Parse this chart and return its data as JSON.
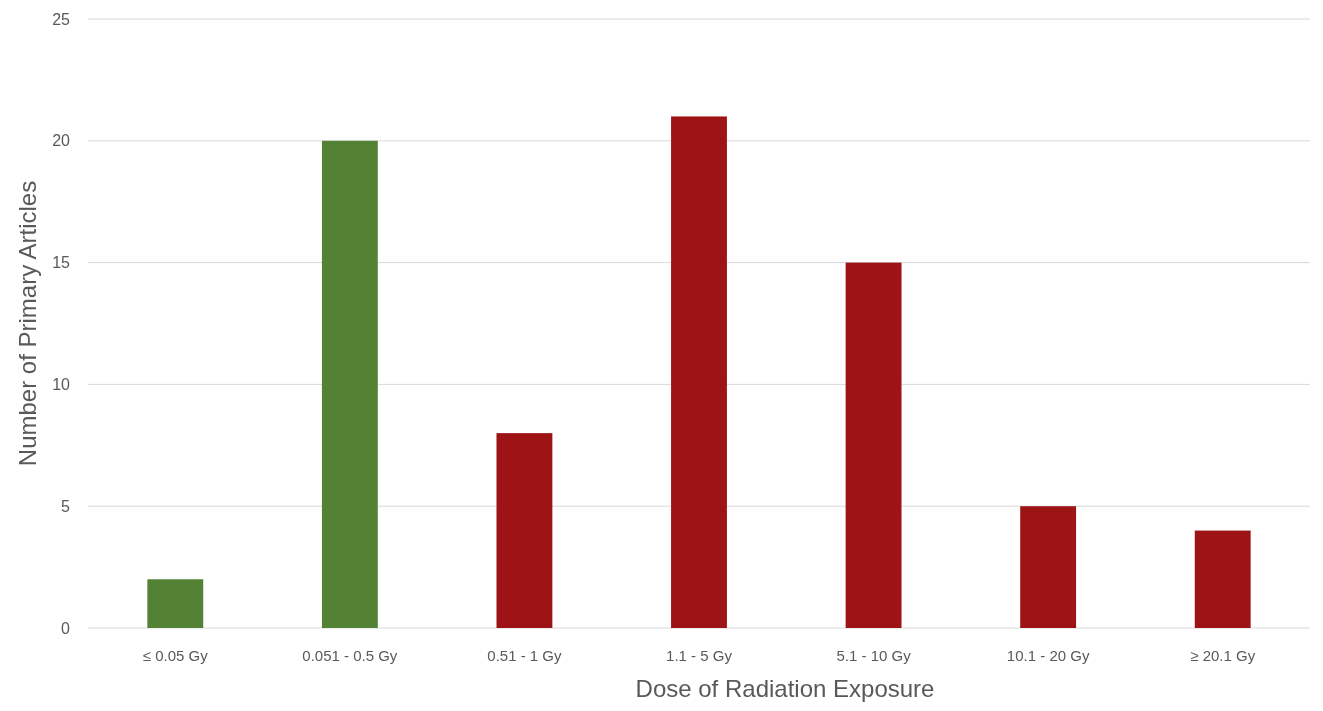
{
  "chart_data": {
    "type": "bar",
    "xlabel": "Dose of Radiation Exposure",
    "ylabel": "Number of Primary Articles",
    "categories": [
      "≤ 0.05 Gy",
      "0.051 - 0.5 Gy",
      "0.51 - 1 Gy",
      "1.1 - 5 Gy",
      "5.1 - 10 Gy",
      "10.1 - 20 Gy",
      "≥ 20.1 Gy"
    ],
    "values": [
      2,
      20,
      8,
      21,
      15,
      5,
      4
    ],
    "colors": [
      "#548235",
      "#548235",
      "#9e1316",
      "#9e1316",
      "#9e1316",
      "#9e1316",
      "#9e1316"
    ],
    "ylim": [
      0,
      25
    ],
    "yticks": [
      0,
      5,
      10,
      15,
      20,
      25
    ],
    "grid": "y"
  }
}
